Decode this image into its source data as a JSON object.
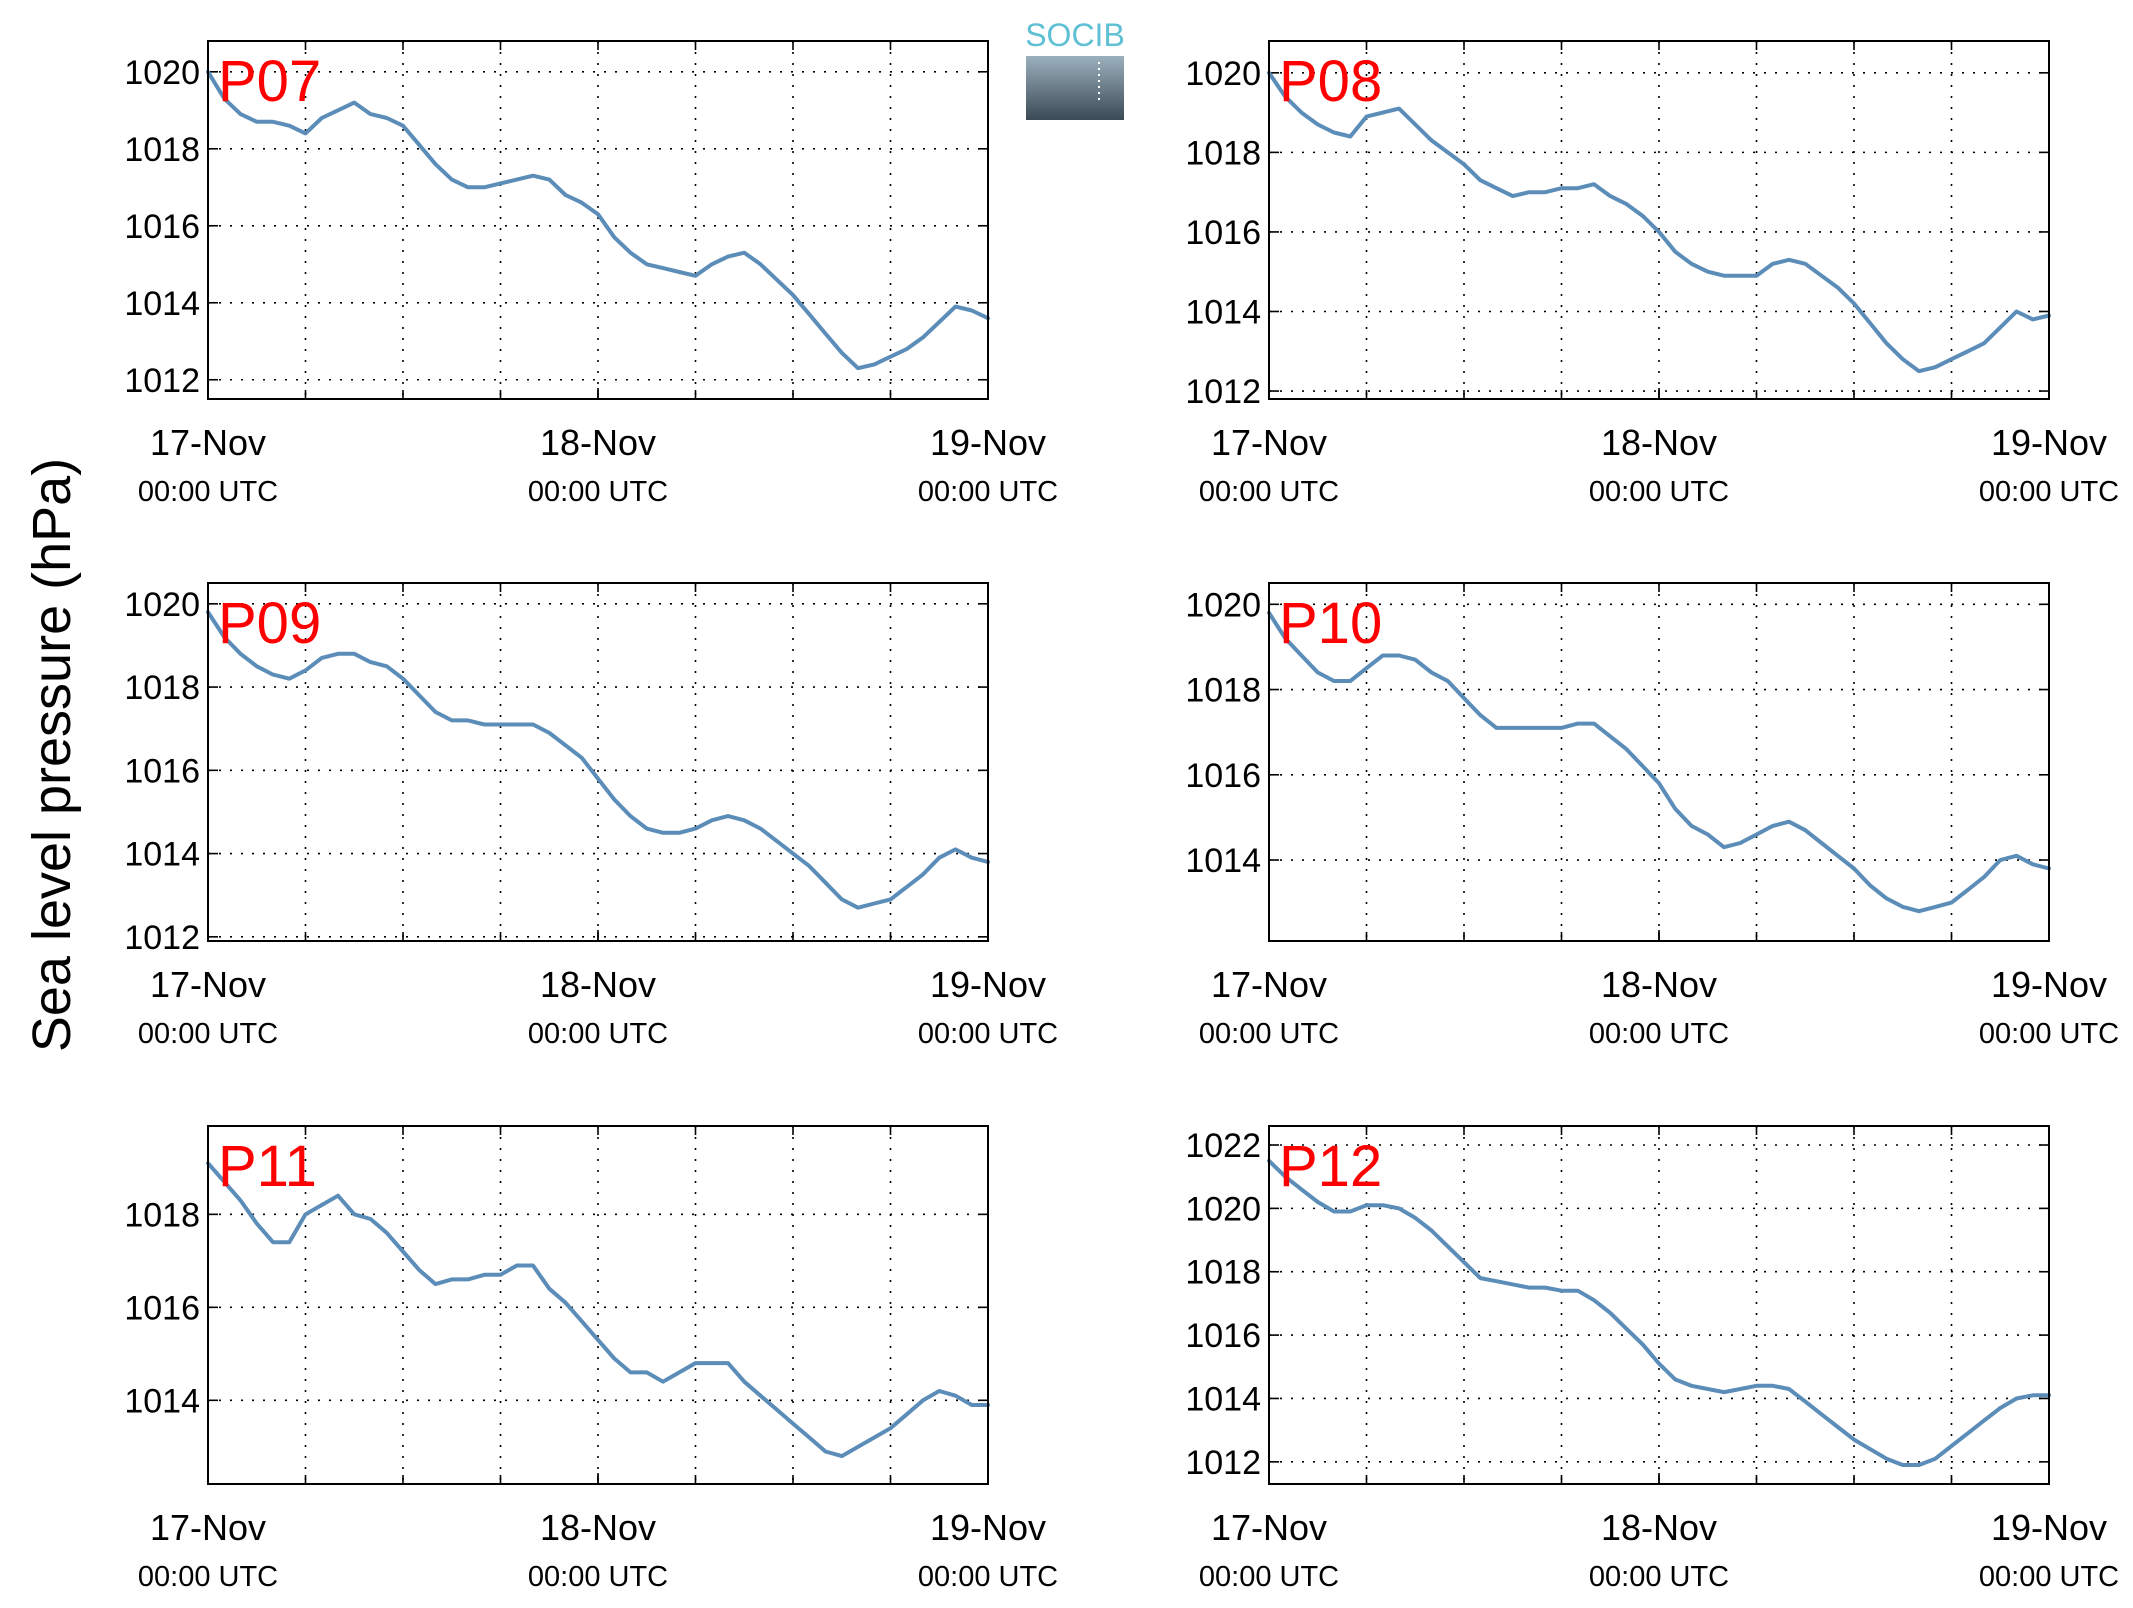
{
  "figure": {
    "ylabel": "Sea level pressure (hPa)",
    "logo_text": "SOCIB",
    "colors": {
      "line": "#5b8db8",
      "title": "#ff0000",
      "logo_text": "#5fc0d3",
      "logo_dark": "#3b4a55",
      "logo_light": "#9bb0bd"
    }
  },
  "chart_data": [
    {
      "type": "line",
      "title": "P07",
      "x_start": "17-Nov 00:00 UTC",
      "x_unit": "hours since 17-Nov 00:00 UTC",
      "xlim": [
        0,
        48
      ],
      "x_ticks": [
        {
          "date": "17-Nov",
          "time": "00:00 UTC"
        },
        {
          "date": "18-Nov",
          "time": "00:00 UTC"
        },
        {
          "date": "19-Nov",
          "time": "00:00 UTC"
        }
      ],
      "ylim": [
        1011.5,
        1020.8
      ],
      "y_ticks": [
        1012,
        1014,
        1016,
        1018,
        1020
      ],
      "grid": true,
      "x": [
        0,
        1,
        2,
        3,
        4,
        5,
        6,
        7,
        8,
        9,
        10,
        11,
        12,
        13,
        14,
        15,
        16,
        17,
        18,
        19,
        20,
        21,
        22,
        23,
        24,
        25,
        26,
        27,
        28,
        29,
        30,
        31,
        32,
        33,
        34,
        35,
        36,
        37,
        38,
        39,
        40,
        41,
        42,
        43,
        44,
        45,
        46,
        47,
        48
      ],
      "y": [
        1020,
        1019.3,
        1018.9,
        1018.7,
        1018.7,
        1018.6,
        1018.4,
        1018.8,
        1019,
        1019.2,
        1018.9,
        1018.8,
        1018.6,
        1018.1,
        1017.6,
        1017.2,
        1017,
        1017,
        1017.1,
        1017.2,
        1017.3,
        1017.2,
        1016.8,
        1016.6,
        1016.3,
        1015.7,
        1015.3,
        1015,
        1014.9,
        1014.8,
        1014.7,
        1015,
        1015.2,
        1015.3,
        1015,
        1014.6,
        1014.2,
        1013.7,
        1013.2,
        1012.7,
        1012.3,
        1012.4,
        1012.6,
        1012.8,
        1013.1,
        1013.5,
        1013.9,
        1013.8,
        1013.6
      ]
    },
    {
      "type": "line",
      "title": "P08",
      "x_start": "17-Nov 00:00 UTC",
      "x_unit": "hours since 17-Nov 00:00 UTC",
      "xlim": [
        0,
        48
      ],
      "x_ticks": [
        {
          "date": "17-Nov",
          "time": "00:00 UTC"
        },
        {
          "date": "18-Nov",
          "time": "00:00 UTC"
        },
        {
          "date": "19-Nov",
          "time": "00:00 UTC"
        }
      ],
      "ylim": [
        1011.8,
        1020.8
      ],
      "y_ticks": [
        1012,
        1014,
        1016,
        1018,
        1020
      ],
      "grid": true,
      "x": [
        0,
        1,
        2,
        3,
        4,
        5,
        6,
        7,
        8,
        9,
        10,
        11,
        12,
        13,
        14,
        15,
        16,
        17,
        18,
        19,
        20,
        21,
        22,
        23,
        24,
        25,
        26,
        27,
        28,
        29,
        30,
        31,
        32,
        33,
        34,
        35,
        36,
        37,
        38,
        39,
        40,
        41,
        42,
        43,
        44,
        45,
        46,
        47,
        48
      ],
      "y": [
        1020,
        1019.4,
        1019,
        1018.7,
        1018.5,
        1018.4,
        1018.9,
        1019,
        1019.1,
        1018.7,
        1018.3,
        1018,
        1017.7,
        1017.3,
        1017.1,
        1016.9,
        1017,
        1017,
        1017.1,
        1017.1,
        1017.2,
        1016.9,
        1016.7,
        1016.4,
        1016,
        1015.5,
        1015.2,
        1015,
        1014.9,
        1014.9,
        1014.9,
        1015.2,
        1015.3,
        1015.2,
        1014.9,
        1014.6,
        1014.2,
        1013.7,
        1013.2,
        1012.8,
        1012.5,
        1012.6,
        1012.8,
        1013,
        1013.2,
        1013.6,
        1014,
        1013.8,
        1013.9
      ]
    },
    {
      "type": "line",
      "title": "P09",
      "x_start": "17-Nov 00:00 UTC",
      "x_unit": "hours since 17-Nov 00:00 UTC",
      "xlim": [
        0,
        48
      ],
      "x_ticks": [
        {
          "date": "17-Nov",
          "time": "00:00 UTC"
        },
        {
          "date": "18-Nov",
          "time": "00:00 UTC"
        },
        {
          "date": "19-Nov",
          "time": "00:00 UTC"
        }
      ],
      "ylim": [
        1011.9,
        1020.5
      ],
      "y_ticks": [
        1012,
        1014,
        1016,
        1018,
        1020
      ],
      "grid": true,
      "x": [
        0,
        1,
        2,
        3,
        4,
        5,
        6,
        7,
        8,
        9,
        10,
        11,
        12,
        13,
        14,
        15,
        16,
        17,
        18,
        19,
        20,
        21,
        22,
        23,
        24,
        25,
        26,
        27,
        28,
        29,
        30,
        31,
        32,
        33,
        34,
        35,
        36,
        37,
        38,
        39,
        40,
        41,
        42,
        43,
        44,
        45,
        46,
        47,
        48
      ],
      "y": [
        1019.8,
        1019.2,
        1018.8,
        1018.5,
        1018.3,
        1018.2,
        1018.4,
        1018.7,
        1018.8,
        1018.8,
        1018.6,
        1018.5,
        1018.2,
        1017.8,
        1017.4,
        1017.2,
        1017.2,
        1017.1,
        1017.1,
        1017.1,
        1017.1,
        1016.9,
        1016.6,
        1016.3,
        1015.8,
        1015.3,
        1014.9,
        1014.6,
        1014.5,
        1014.5,
        1014.6,
        1014.8,
        1014.9,
        1014.8,
        1014.6,
        1014.3,
        1014,
        1013.7,
        1013.3,
        1012.9,
        1012.7,
        1012.8,
        1012.9,
        1013.2,
        1013.5,
        1013.9,
        1014.1,
        1013.9,
        1013.8
      ]
    },
    {
      "type": "line",
      "title": "P10",
      "x_start": "17-Nov 00:00 UTC",
      "x_unit": "hours since 17-Nov 00:00 UTC",
      "xlim": [
        0,
        48
      ],
      "x_ticks": [
        {
          "date": "17-Nov",
          "time": "00:00 UTC"
        },
        {
          "date": "18-Nov",
          "time": "00:00 UTC"
        },
        {
          "date": "19-Nov",
          "time": "00:00 UTC"
        }
      ],
      "ylim": [
        1012.1,
        1020.5
      ],
      "y_ticks": [
        1014,
        1016,
        1018,
        1020
      ],
      "grid": true,
      "x": [
        0,
        1,
        2,
        3,
        4,
        5,
        6,
        7,
        8,
        9,
        10,
        11,
        12,
        13,
        14,
        15,
        16,
        17,
        18,
        19,
        20,
        21,
        22,
        23,
        24,
        25,
        26,
        27,
        28,
        29,
        30,
        31,
        32,
        33,
        34,
        35,
        36,
        37,
        38,
        39,
        40,
        41,
        42,
        43,
        44,
        45,
        46,
        47,
        48
      ],
      "y": [
        1019.8,
        1019.2,
        1018.8,
        1018.4,
        1018.2,
        1018.2,
        1018.5,
        1018.8,
        1018.8,
        1018.7,
        1018.4,
        1018.2,
        1017.8,
        1017.4,
        1017.1,
        1017.1,
        1017.1,
        1017.1,
        1017.1,
        1017.2,
        1017.2,
        1016.9,
        1016.6,
        1016.2,
        1015.8,
        1015.2,
        1014.8,
        1014.6,
        1014.3,
        1014.4,
        1014.6,
        1014.8,
        1014.9,
        1014.7,
        1014.4,
        1014.1,
        1013.8,
        1013.4,
        1013.1,
        1012.9,
        1012.8,
        1012.9,
        1013,
        1013.3,
        1013.6,
        1014,
        1014.1,
        1013.9,
        1013.8
      ]
    },
    {
      "type": "line",
      "title": "P11",
      "x_start": "17-Nov 00:00 UTC",
      "x_unit": "hours since 17-Nov 00:00 UTC",
      "xlim": [
        0,
        48
      ],
      "x_ticks": [
        {
          "date": "17-Nov",
          "time": "00:00 UTC"
        },
        {
          "date": "18-Nov",
          "time": "00:00 UTC"
        },
        {
          "date": "19-Nov",
          "time": "00:00 UTC"
        }
      ],
      "ylim": [
        1012.2,
        1019.9
      ],
      "y_ticks": [
        1014,
        1016,
        1018
      ],
      "grid": true,
      "x": [
        0,
        1,
        2,
        3,
        4,
        5,
        6,
        7,
        8,
        9,
        10,
        11,
        12,
        13,
        14,
        15,
        16,
        17,
        18,
        19,
        20,
        21,
        22,
        23,
        24,
        25,
        26,
        27,
        28,
        29,
        30,
        31,
        32,
        33,
        34,
        35,
        36,
        37,
        38,
        39,
        40,
        41,
        42,
        43,
        44,
        45,
        46,
        47,
        48
      ],
      "y": [
        1019.1,
        1018.7,
        1018.3,
        1017.8,
        1017.4,
        1017.4,
        1018,
        1018.2,
        1018.4,
        1018,
        1017.9,
        1017.6,
        1017.2,
        1016.8,
        1016.5,
        1016.6,
        1016.6,
        1016.7,
        1016.7,
        1016.9,
        1016.9,
        1016.4,
        1016.1,
        1015.7,
        1015.3,
        1014.9,
        1014.6,
        1014.6,
        1014.4,
        1014.6,
        1014.8,
        1014.8,
        1014.8,
        1014.4,
        1014.1,
        1013.8,
        1013.5,
        1013.2,
        1012.9,
        1012.8,
        1013,
        1013.2,
        1013.4,
        1013.7,
        1014,
        1014.2,
        1014.1,
        1013.9,
        1013.9
      ]
    },
    {
      "type": "line",
      "title": "P12",
      "x_start": "17-Nov 00:00 UTC",
      "x_unit": "hours since 17-Nov 00:00 UTC",
      "xlim": [
        0,
        48
      ],
      "x_ticks": [
        {
          "date": "17-Nov",
          "time": "00:00 UTC"
        },
        {
          "date": "18-Nov",
          "time": "00:00 UTC"
        },
        {
          "date": "19-Nov",
          "time": "00:00 UTC"
        }
      ],
      "ylim": [
        1011.3,
        1022.6
      ],
      "y_ticks": [
        1012,
        1014,
        1016,
        1018,
        1020,
        1022
      ],
      "grid": true,
      "x": [
        0,
        1,
        2,
        3,
        4,
        5,
        6,
        7,
        8,
        9,
        10,
        11,
        12,
        13,
        14,
        15,
        16,
        17,
        18,
        19,
        20,
        21,
        22,
        23,
        24,
        25,
        26,
        27,
        28,
        29,
        30,
        31,
        32,
        33,
        34,
        35,
        36,
        37,
        38,
        39,
        40,
        41,
        42,
        43,
        44,
        45,
        46,
        47,
        48
      ],
      "y": [
        1021.5,
        1021,
        1020.6,
        1020.2,
        1019.9,
        1019.9,
        1020.1,
        1020.1,
        1020,
        1019.7,
        1019.3,
        1018.8,
        1018.3,
        1017.8,
        1017.7,
        1017.6,
        1017.5,
        1017.5,
        1017.4,
        1017.4,
        1017.1,
        1016.7,
        1016.2,
        1015.7,
        1015.1,
        1014.6,
        1014.4,
        1014.3,
        1014.2,
        1014.3,
        1014.4,
        1014.4,
        1014.3,
        1013.9,
        1013.5,
        1013.1,
        1012.7,
        1012.4,
        1012.1,
        1011.9,
        1011.9,
        1012.1,
        1012.5,
        1012.9,
        1013.3,
        1013.7,
        1014,
        1014.1,
        1014.1
      ]
    }
  ]
}
